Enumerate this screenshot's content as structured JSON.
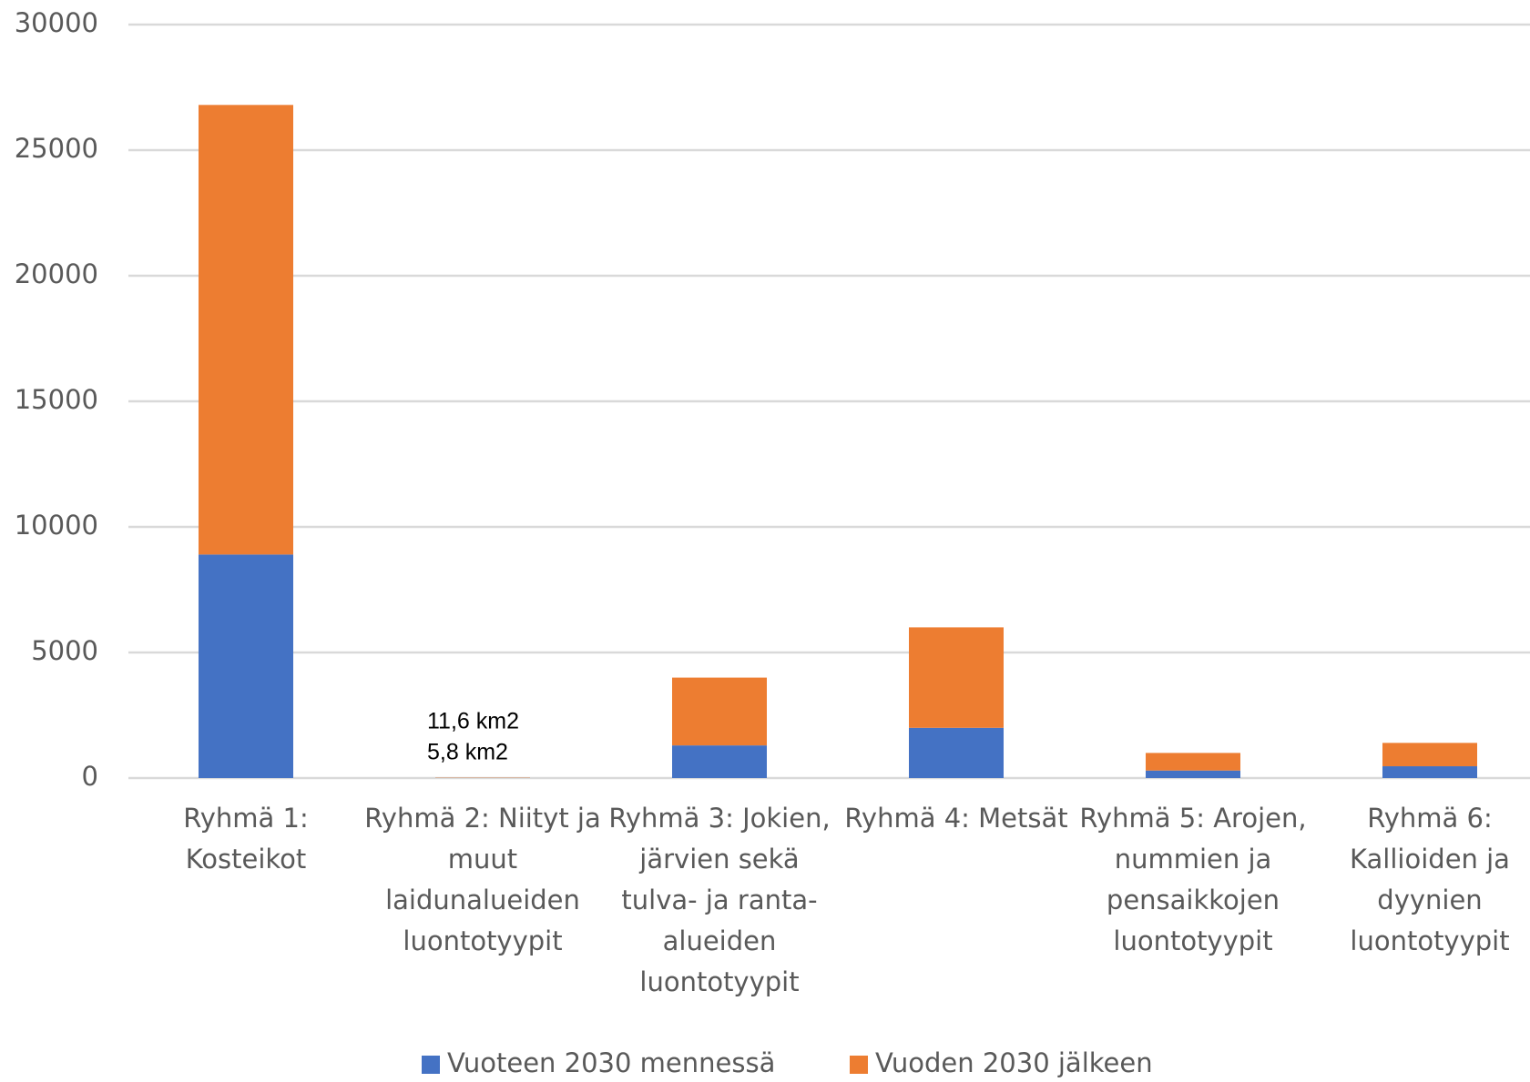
{
  "chart_data": {
    "type": "bar",
    "stacked": true,
    "categories": [
      "Ryhmä 1: Kosteikot",
      "Ryhmä 2: Niityt ja muut laidunalueiden luontotyypit",
      "Ryhmä 3: Jokien, järvien sekä tulva- ja ranta-alueiden luontotyypit",
      "Ryhmä 4: Metsät",
      "Ryhmä 5: Arojen, nummien ja pensaikkojen luontotyypit",
      "Ryhmä 6: Kallioiden ja dyynien luontotyypit"
    ],
    "series": [
      {
        "name": "Vuoteen 2030 mennessä",
        "color": "#4472c4",
        "values": [
          8900,
          5.8,
          1300,
          2000,
          300,
          470
        ],
        "value_labels": [
          null,
          "5,8 km2",
          null,
          null,
          null,
          null
        ]
      },
      {
        "name": "Vuoden 2030 jälkeen",
        "color": "#ed7d31",
        "values": [
          17900,
          11.6,
          2700,
          4000,
          700,
          930
        ],
        "value_labels": [
          null,
          "11,6 km2",
          null,
          null,
          null,
          null
        ]
      }
    ],
    "ylim": [
      0,
      30000
    ],
    "yticks": [
      0,
      5000,
      10000,
      15000,
      20000,
      25000,
      30000
    ],
    "grid": true,
    "legend": "bottom"
  }
}
